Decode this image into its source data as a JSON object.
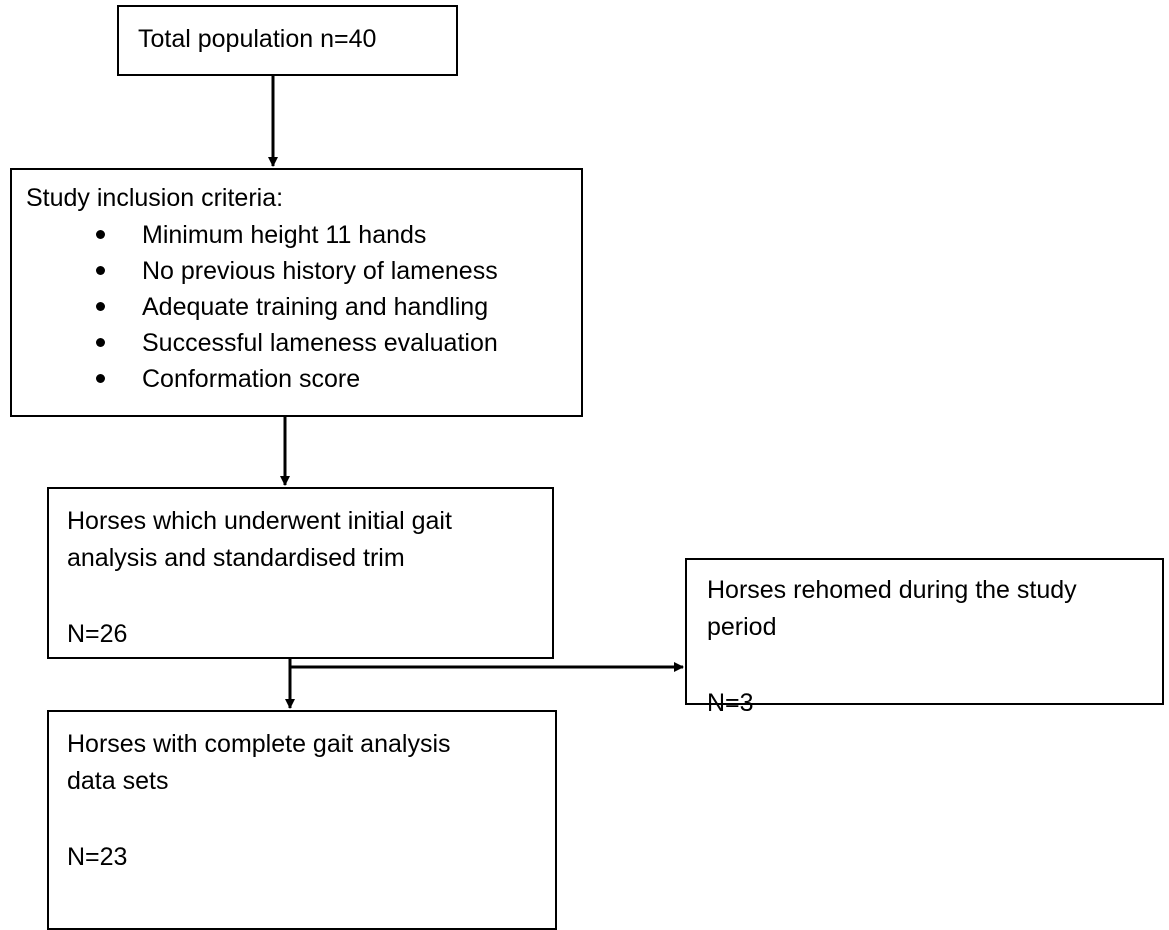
{
  "flow": {
    "total": {
      "text": "Total population n=40"
    },
    "criteria": {
      "heading": "Study inclusion criteria:",
      "items": [
        "Minimum height 11 hands",
        "No previous history of lameness",
        "Adequate training and handling",
        "Successful lameness evaluation",
        "Conformation score"
      ]
    },
    "initial": {
      "line1": "Horses which underwent initial gait",
      "line2": "analysis and standardised trim",
      "count": "N=26"
    },
    "rehomed": {
      "line1": "Horses rehomed during the study",
      "line2": "period",
      "count": "N=3"
    },
    "complete": {
      "line1": "Horses with complete gait analysis",
      "line2": "data sets",
      "count": "N=23"
    }
  }
}
